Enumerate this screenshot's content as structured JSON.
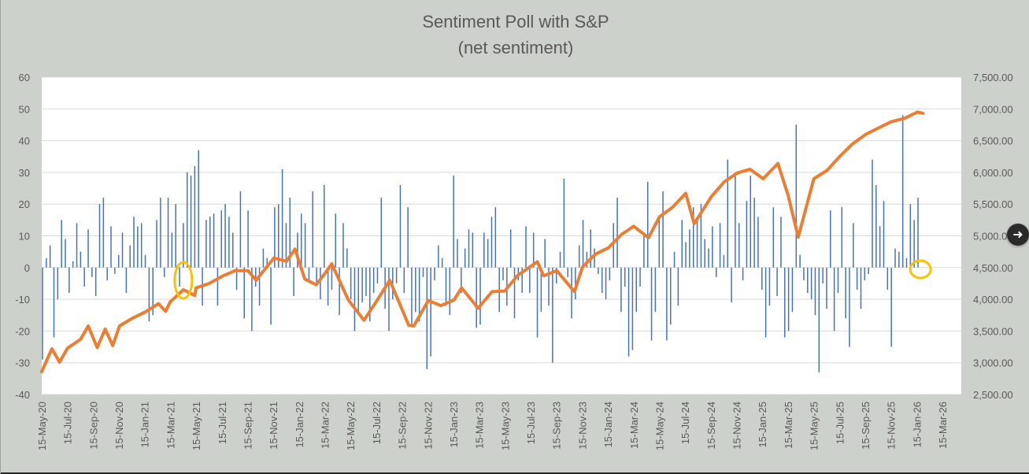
{
  "chart_data": {
    "type": "bar+line",
    "title": "Sentiment Poll with S&P",
    "subtitle": "(net sentiment)",
    "left_axis": {
      "ylim": [
        -40,
        60
      ],
      "ticks": [
        "60",
        "50",
        "40",
        "30",
        "20",
        "10",
        "0",
        "-10",
        "-20",
        "-30",
        "-40"
      ]
    },
    "right_axis": {
      "ylim": [
        2500,
        7500
      ],
      "ticks": [
        "7,500.00",
        "7,000.00",
        "6,500.00",
        "6,000.00",
        "5,500.00",
        "5,000.00",
        "4,500.00",
        "4,000.00",
        "3,500.00",
        "3,000.00",
        "2,500.00"
      ]
    },
    "x_ticks": [
      "15-May-20",
      "15-Jul-20",
      "15-Sep-20",
      "15-Nov-20",
      "15-Jan-21",
      "15-Mar-21",
      "15-May-21",
      "15-Jul-21",
      "15-Sep-21",
      "15-Nov-21",
      "15-Jan-22",
      "15-Mar-22",
      "15-May-22",
      "15-Jul-22",
      "15-Sep-22",
      "15-Nov-22",
      "15-Jan-23",
      "15-Mar-23",
      "15-May-23",
      "15-Jul-23",
      "15-Sep-23",
      "15-Nov-23",
      "15-Jan-24",
      "15-Mar-24",
      "15-May-24",
      "15-Jul-24",
      "15-Sep-24",
      "15-Nov-24",
      "15-Jan-25",
      "15-Mar-25",
      "15-May-25",
      "15-Jul-25",
      "15-Sep-25",
      "15-Nov-25",
      "15-Jan-26",
      "15-Mar-26"
    ],
    "grid": true,
    "series": [
      {
        "name": "Net sentiment",
        "kind": "bar",
        "axis": "left",
        "color": "#4472c4",
        "values": [
          -29,
          3,
          7,
          -22,
          -10,
          15,
          9,
          -8,
          2,
          14,
          5,
          -6,
          12,
          -3,
          -9,
          20,
          22,
          -4,
          13,
          -2,
          4,
          11,
          -8,
          7,
          16,
          13,
          14,
          4,
          -17,
          -15,
          15,
          22,
          -3,
          22,
          11,
          20,
          -6,
          14,
          30,
          29,
          32,
          37,
          -12,
          15,
          16,
          17,
          -12,
          18,
          20,
          16,
          11,
          -7,
          24,
          -16,
          18,
          -20,
          -6,
          -12,
          6,
          3,
          -18,
          19,
          20,
          31,
          14,
          22,
          -9,
          11,
          17,
          14,
          -4,
          24,
          -5,
          -10,
          26,
          -12,
          -7,
          17,
          -15,
          14,
          6,
          -10,
          -20,
          -14,
          -11,
          -9,
          -17,
          -8,
          -5,
          22,
          -13,
          -20,
          -10,
          -5,
          26,
          -8,
          19,
          -18,
          -14,
          -17,
          -3,
          -32,
          -28,
          -4,
          7,
          3,
          -12,
          -15,
          29,
          9,
          -8,
          6,
          12,
          11,
          -19,
          -18,
          11,
          9,
          16,
          19,
          -14,
          -4,
          -12,
          12,
          -16,
          -4,
          -8,
          13,
          -8,
          11,
          -22,
          -14,
          9,
          -12,
          -30,
          -5,
          5,
          28,
          -3,
          -16,
          -10,
          7,
          15,
          5,
          12,
          6,
          -2,
          -8,
          -10,
          -4,
          14,
          22,
          -14,
          -6,
          -28,
          -26,
          -14,
          -6,
          10,
          27,
          -23,
          -14,
          15,
          24,
          -23,
          -18,
          5,
          -12,
          15,
          8,
          12,
          19,
          16,
          20,
          9,
          6,
          13,
          -3,
          14,
          4,
          34,
          -11,
          30,
          14,
          -4,
          21,
          29,
          22,
          16,
          -7,
          -22,
          -12,
          19,
          -9,
          16,
          -22,
          -20,
          -14,
          45,
          4,
          -4,
          -8,
          -10,
          -15,
          -33,
          -5,
          -13,
          18,
          -20,
          -8,
          19,
          -16,
          -25,
          14,
          -7,
          -13,
          -4,
          -2,
          34,
          26,
          13,
          21,
          -7,
          -25,
          6,
          5,
          48,
          3,
          20,
          15,
          22
        ],
        "highlight_circles": [
          "15-Apr-21",
          "22-Jan-26"
        ]
      },
      {
        "name": "S&P 500",
        "kind": "line",
        "axis": "right",
        "color": "#ed7d31",
        "x_dates": [
          "2020-05-15",
          "2020-06-08",
          "2020-06-26",
          "2020-07-15",
          "2020-08-15",
          "2020-09-02",
          "2020-09-23",
          "2020-10-12",
          "2020-10-30",
          "2020-11-15",
          "2020-12-15",
          "2021-01-15",
          "2021-02-15",
          "2021-03-04",
          "2021-03-15",
          "2021-04-15",
          "2021-05-12",
          "2021-05-15",
          "2021-06-15",
          "2021-07-15",
          "2021-08-15",
          "2021-09-15",
          "2021-10-04",
          "2021-11-15",
          "2021-12-15",
          "2022-01-04",
          "2022-01-27",
          "2022-02-23",
          "2022-03-15",
          "2022-04-01",
          "2022-05-10",
          "2022-06-16",
          "2022-07-15",
          "2022-08-16",
          "2022-09-30",
          "2022-10-12",
          "2022-11-15",
          "2022-12-15",
          "2023-01-15",
          "2023-02-02",
          "2023-03-13",
          "2023-04-15",
          "2023-05-15",
          "2023-06-15",
          "2023-07-31",
          "2023-08-15",
          "2023-09-15",
          "2023-10-27",
          "2023-11-15",
          "2023-12-15",
          "2024-01-15",
          "2024-02-15",
          "2024-03-15",
          "2024-04-19",
          "2024-05-15",
          "2024-06-15",
          "2024-07-16",
          "2024-08-05",
          "2024-09-15",
          "2024-10-15",
          "2024-11-15",
          "2024-12-15",
          "2025-01-15",
          "2025-02-19",
          "2025-03-15",
          "2025-04-08",
          "2025-05-15",
          "2025-06-15",
          "2025-07-15",
          "2025-08-15",
          "2025-09-15",
          "2025-10-15",
          "2025-11-15",
          "2025-12-15",
          "2026-01-15",
          "2026-01-28"
        ],
        "values": [
          2860,
          3220,
          3010,
          3230,
          3370,
          3580,
          3240,
          3530,
          3270,
          3580,
          3700,
          3800,
          3930,
          3810,
          3960,
          4150,
          4060,
          4180,
          4250,
          4360,
          4450,
          4450,
          4300,
          4650,
          4600,
          4790,
          4320,
          4230,
          4400,
          4560,
          3990,
          3670,
          3960,
          4300,
          3590,
          3580,
          3980,
          3900,
          3990,
          4180,
          3860,
          4120,
          4130,
          4380,
          4590,
          4370,
          4450,
          4120,
          4510,
          4710,
          4810,
          5020,
          5150,
          4970,
          5300,
          5450,
          5670,
          5190,
          5620,
          5850,
          5990,
          6050,
          5900,
          6140,
          5640,
          4980,
          5900,
          6030,
          6250,
          6450,
          6600,
          6700,
          6800,
          6850,
          6950,
          6930
        ]
      }
    ]
  }
}
